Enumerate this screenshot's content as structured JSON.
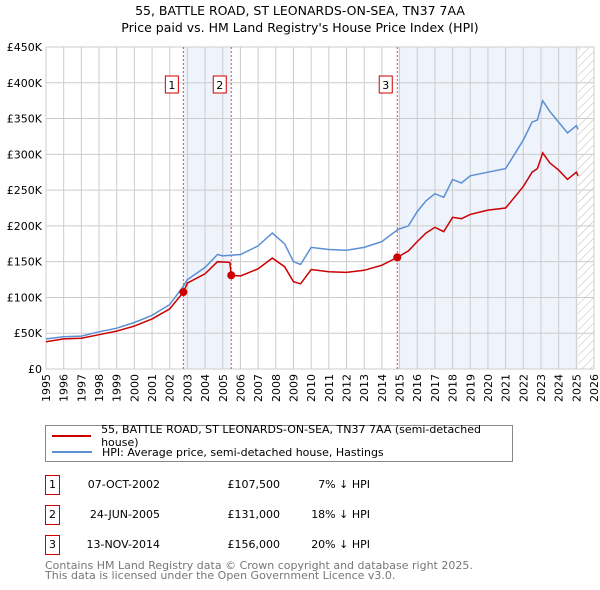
{
  "chart_data": {
    "type": "line",
    "title": "55, BATTLE ROAD, ST LEONARDS-ON-SEA, TN37 7AA",
    "subtitle": "Price paid vs. HM Land Registry's House Price Index (HPI)",
    "xlim": [
      1995,
      2026
    ],
    "ylim": [
      0,
      450000
    ],
    "y_ticks": [
      {
        "v": 0,
        "label": "£0"
      },
      {
        "v": 50000,
        "label": "£50K"
      },
      {
        "v": 100000,
        "label": "£100K"
      },
      {
        "v": 150000,
        "label": "£150K"
      },
      {
        "v": 200000,
        "label": "£200K"
      },
      {
        "v": 250000,
        "label": "£250K"
      },
      {
        "v": 300000,
        "label": "£300K"
      },
      {
        "v": 350000,
        "label": "£350K"
      },
      {
        "v": 400000,
        "label": "£400K"
      },
      {
        "v": 450000,
        "label": "£450K"
      }
    ],
    "x_ticks": [
      "1995",
      "1996",
      "1997",
      "1998",
      "1999",
      "2000",
      "2001",
      "2002",
      "2003",
      "2004",
      "2005",
      "2006",
      "2007",
      "2008",
      "2009",
      "2010",
      "2011",
      "2012",
      "2013",
      "2014",
      "2015",
      "2016",
      "2017",
      "2018",
      "2019",
      "2020",
      "2021",
      "2022",
      "2023",
      "2024",
      "2025",
      "2026"
    ],
    "grid": true,
    "shaded_ranges": [
      [
        2002.77,
        2005.48
      ],
      [
        2014.87,
        2025.1
      ]
    ],
    "hatch_from": 2025.1,
    "series": [
      {
        "name": "55, BATTLE ROAD, ST LEONARDS-ON-SEA, TN37 7AA (semi-detached house)",
        "color": "#cc0000",
        "x": [
          1995,
          1996,
          1997,
          1998,
          1999,
          2000,
          2001,
          2002,
          2002.77,
          2003,
          2004,
          2004.7,
          2005.4,
          2005.48,
          2006,
          2007,
          2007.8,
          2008.5,
          2009,
          2009.4,
          2010,
          2011,
          2012,
          2013,
          2014,
          2014.87,
          2015.5,
          2016,
          2016.5,
          2017,
          2017.5,
          2018,
          2018.5,
          2019,
          2020,
          2021,
          2021.5,
          2022,
          2022.5,
          2022.8,
          2023.1,
          2023.5,
          2024,
          2024.5,
          2025,
          2025.1
        ],
        "y": [
          38000,
          42000,
          43000,
          48000,
          53000,
          60000,
          70000,
          84000,
          107500,
          120000,
          133000,
          150000,
          149000,
          131000,
          130000,
          140000,
          155000,
          143000,
          122000,
          119000,
          139000,
          136000,
          135000,
          138000,
          145000,
          156000,
          165000,
          178000,
          190000,
          198000,
          192000,
          212000,
          210000,
          216000,
          222000,
          225000,
          240000,
          255000,
          275000,
          280000,
          302000,
          288000,
          278000,
          265000,
          275000,
          270000
        ]
      },
      {
        "name": "HPI: Average price, semi-detached house, Hastings",
        "color": "#5b8fd4",
        "x": [
          1995,
          1996,
          1997,
          1998,
          1999,
          2000,
          2001,
          2002,
          2002.75,
          2003,
          2004,
          2004.7,
          2005,
          2006,
          2007,
          2007.8,
          2008.5,
          2009,
          2009.4,
          2010,
          2011,
          2012,
          2013,
          2014,
          2014.9,
          2015.5,
          2016,
          2016.5,
          2017,
          2017.5,
          2018,
          2018.5,
          2019,
          2020,
          2021,
          2021.5,
          2022,
          2022.5,
          2022.8,
          2023.1,
          2023.5,
          2024,
          2024.5,
          2025,
          2025.1
        ],
        "y": [
          42000,
          45000,
          46000,
          52000,
          57000,
          65000,
          75000,
          90000,
          115000,
          125000,
          142000,
          160000,
          158000,
          160000,
          172000,
          190000,
          175000,
          150000,
          146000,
          170000,
          167000,
          166000,
          170000,
          178000,
          195000,
          200000,
          220000,
          235000,
          245000,
          240000,
          265000,
          260000,
          270000,
          275000,
          280000,
          300000,
          320000,
          345000,
          348000,
          375000,
          360000,
          345000,
          330000,
          340000,
          335000
        ]
      }
    ],
    "sales": [
      {
        "label": "1",
        "x": 2002.77,
        "y": 107500,
        "date": "07-OCT-2002",
        "price": "£107,500",
        "hpi": "7% ↓ HPI"
      },
      {
        "label": "2",
        "x": 2005.48,
        "y": 131000,
        "date": "24-JUN-2005",
        "price": "£131,000",
        "hpi": "18% ↓ HPI"
      },
      {
        "label": "3",
        "x": 2014.87,
        "y": 156000,
        "date": "13-NOV-2014",
        "price": "£156,000",
        "hpi": "20% ↓ HPI"
      }
    ],
    "legend": [
      "55, BATTLE ROAD, ST LEONARDS-ON-SEA, TN37 7AA (semi-detached house)",
      "HPI: Average price, semi-detached house, Hastings"
    ]
  },
  "footer": [
    "Contains HM Land Registry data © Crown copyright and database right 2025.",
    "This data is licensed under the Open Government Licence v3.0."
  ]
}
